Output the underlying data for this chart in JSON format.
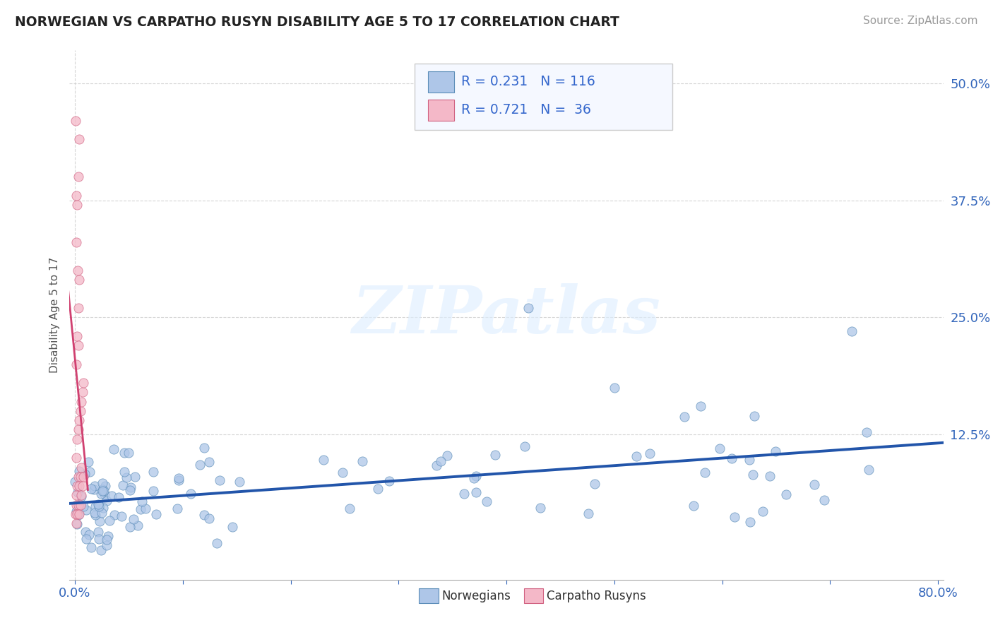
{
  "title": "NORWEGIAN VS CARPATHO RUSYN DISABILITY AGE 5 TO 17 CORRELATION CHART",
  "source": "Source: ZipAtlas.com",
  "ylabel": "Disability Age 5 to 17",
  "xlim": [
    -0.005,
    0.805
  ],
  "ylim": [
    -0.03,
    0.535
  ],
  "xticks": [
    0.0,
    0.1,
    0.2,
    0.3,
    0.4,
    0.5,
    0.6,
    0.7,
    0.8
  ],
  "xticklabels": [
    "0.0%",
    "",
    "",
    "",
    "",
    "",
    "",
    "",
    "80.0%"
  ],
  "yticks": [
    0.0,
    0.125,
    0.25,
    0.375,
    0.5
  ],
  "yticklabels": [
    "",
    "12.5%",
    "25.0%",
    "37.5%",
    "50.0%"
  ],
  "background_color": "#ffffff",
  "grid_color": "#cccccc",
  "watermark_text": "ZIPatlas",
  "legend_text1": "R = 0.231   N = 116",
  "legend_text2": "R = 0.721   N =  36",
  "series1_face": "#aec6e8",
  "series1_edge": "#5b8db8",
  "series2_face": "#f4b8c8",
  "series2_edge": "#d06080",
  "line1_color": "#2255aa",
  "line2_color": "#d04070",
  "norwegians_label": "Norwegians",
  "carpatho_label": "Carpatho Rusyns"
}
